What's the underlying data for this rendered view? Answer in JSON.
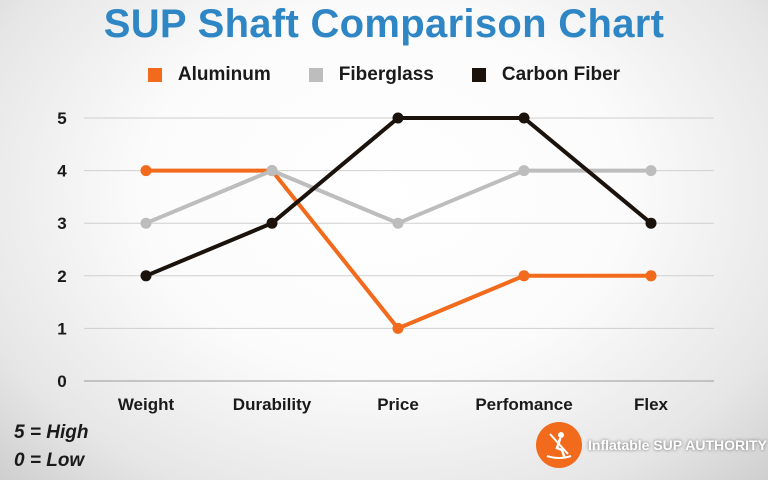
{
  "chart_data": {
    "type": "line",
    "title": "SUP Shaft Comparison Chart",
    "categories": [
      "Weight",
      "Durability",
      "Price",
      "Perfomance",
      "Flex"
    ],
    "series": [
      {
        "name": "Aluminum",
        "color": "#f26a1b",
        "values": [
          4,
          4,
          1,
          2,
          2
        ]
      },
      {
        "name": "Fiberglass",
        "color": "#bdbdbd",
        "values": [
          3,
          4,
          3,
          4,
          4
        ]
      },
      {
        "name": "Carbon Fiber",
        "color": "#1a120b",
        "values": [
          2,
          3,
          5,
          5,
          3
        ]
      }
    ],
    "yticks": [
      "0",
      "1",
      "2",
      "3",
      "4",
      "5"
    ],
    "ylim": [
      0,
      5
    ],
    "grid": true,
    "legend_position": "top-center"
  },
  "notes": {
    "high": "5 = High",
    "low": "0 = Low"
  },
  "brand": {
    "text": "Inflatable SUP AUTHORITY",
    "logo_icon": "paddler-icon"
  }
}
